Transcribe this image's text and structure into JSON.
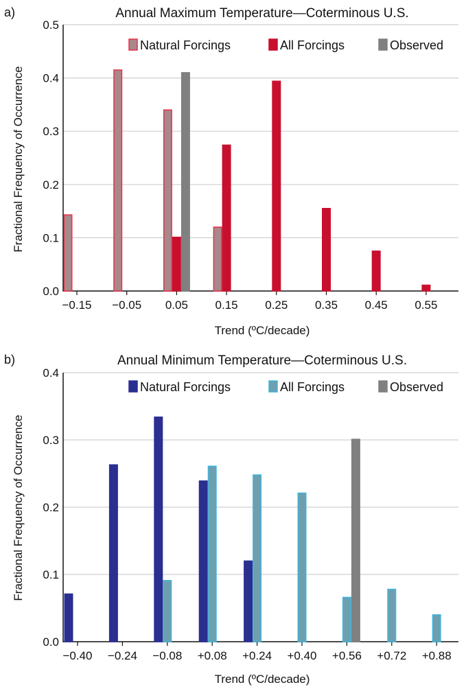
{
  "panels": [
    {
      "panel_label": "a)",
      "chart_data": {
        "type": "bar",
        "title": "Annual Maximum Temperature—Coterminous U.S.",
        "xlabel": "Trend (ºC/decade)",
        "ylabel": "Fractional Frequency of Occurrence",
        "x_ticks": [
          "−0.15",
          "−0.05",
          "0.05",
          "0.15",
          "0.25",
          "0.35",
          "0.45",
          "0.55"
        ],
        "y_ticks": [
          "0.0",
          "0.1",
          "0.2",
          "0.3",
          "0.4",
          "0.5"
        ],
        "ylim": [
          0,
          0.5
        ],
        "grid": true,
        "legend_position": "top",
        "series": [
          {
            "name": "Natural Forcings",
            "fill": "#a9878a",
            "stroke": "#e8314a",
            "offset": -1,
            "values": [
              0.143,
              0.415,
              0.34,
              0.12,
              0,
              0,
              0,
              0
            ]
          },
          {
            "name": "All Forcings",
            "fill": "#c8102e",
            "stroke": "#c8102e",
            "offset": 0,
            "values": [
              0,
              0,
              0.101,
              0.274,
              0.394,
              0.155,
              0.075,
              0.011
            ]
          },
          {
            "name": "Observed",
            "fill": "#808080",
            "stroke": "#808080",
            "offset": 1,
            "values": [
              0,
              0,
              0.41,
              0,
              0,
              0,
              0,
              0
            ]
          }
        ]
      }
    },
    {
      "panel_label": "b)",
      "chart_data": {
        "type": "bar",
        "title": "Annual Minimum Temperature—Coterminous U.S.",
        "xlabel": "Trend (ºC/decade)",
        "ylabel": "Fractional Frequency of Occurrence",
        "x_ticks": [
          "−0.40",
          "−0.24",
          "−0.08",
          "+0.08",
          "+0.24",
          "+0.40",
          "+0.56",
          "+0.72",
          "+0.88"
        ],
        "y_ticks": [
          "0.0",
          "0.1",
          "0.2",
          "0.3",
          "0.4"
        ],
        "ylim": [
          0,
          0.4
        ],
        "grid": true,
        "legend_position": "top",
        "series": [
          {
            "name": "Natural Forcings",
            "fill": "#2b2f8f",
            "stroke": "#2b2f8f",
            "offset": -1,
            "values": [
              0.071,
              0.263,
              0.334,
              0.239,
              0.12,
              0,
              0,
              0,
              0
            ]
          },
          {
            "name": "All Forcings",
            "fill": "#6d9fb0",
            "stroke": "#3fb6dc",
            "offset": 0,
            "values": [
              0,
              0,
              0.091,
              0.261,
              0.248,
              0.221,
              0.066,
              0.078,
              0.04
            ]
          },
          {
            "name": "Observed",
            "fill": "#808080",
            "stroke": "#808080",
            "offset": 1,
            "values": [
              0,
              0,
              0,
              0,
              0,
              0,
              0.301,
              0,
              0
            ]
          }
        ]
      }
    }
  ]
}
